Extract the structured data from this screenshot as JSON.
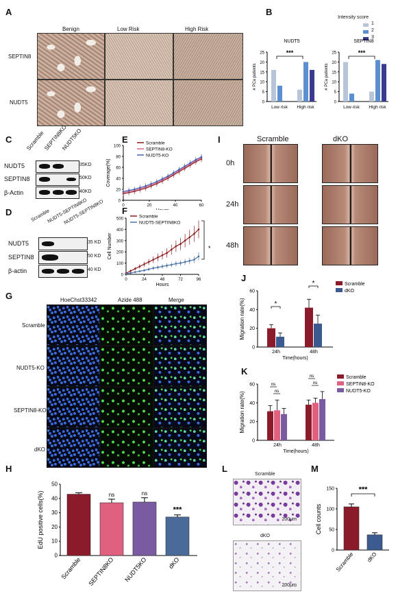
{
  "panels": {
    "A": "A",
    "B": "B",
    "C": "C",
    "D": "D",
    "E": "E",
    "F": "F",
    "G": "G",
    "H": "H",
    "I": "I",
    "J": "J",
    "K": "K",
    "L": "L",
    "M": "M"
  },
  "panelA": {
    "cols": [
      "Benign",
      "Low Risk",
      "High Risk"
    ],
    "rows": [
      "SEPTIN8",
      "NUDT5"
    ]
  },
  "panelB": {
    "legend_title": "Intensity score",
    "legend": [
      "1",
      "2",
      "3"
    ],
    "legend_colors": [
      "#b8c4d8",
      "#5b8fd0",
      "#3a3a90"
    ],
    "ylabel": "# PCa patients",
    "sig": "***",
    "charts": [
      {
        "title": "NUDT5",
        "categories": [
          "Low risk",
          "High risk"
        ],
        "series": [
          {
            "name": "1",
            "values": [
              16,
              6
            ]
          },
          {
            "name": "2",
            "values": [
              8,
              20
            ]
          },
          {
            "name": "3",
            "values": [
              0,
              16
            ]
          }
        ],
        "yticks": [
          "0",
          "5",
          "10",
          "15",
          "20",
          "25"
        ],
        "ylim": [
          0,
          25
        ]
      },
      {
        "title": "SEPTIN8",
        "categories": [
          "Low risk",
          "High risk"
        ],
        "series": [
          {
            "name": "1",
            "values": [
              20,
              5
            ]
          },
          {
            "name": "2",
            "values": [
              4,
              21
            ]
          },
          {
            "name": "3",
            "values": [
              0,
              19
            ]
          }
        ],
        "yticks": [
          "0",
          "5",
          "10",
          "15",
          "20",
          "25"
        ],
        "ylim": [
          0,
          25
        ]
      }
    ]
  },
  "panelC": {
    "lanes": [
      "Scramble",
      "SEPTIN8KO",
      "NUDT5KO"
    ],
    "rows": [
      "NUDT5",
      "SEPTIN8",
      "β-Actin"
    ],
    "markers": [
      "35KD",
      "50KD",
      "40KD"
    ]
  },
  "panelD": {
    "lanes": [
      "Scramble",
      "NUDT5-SEPTIN8KO",
      "NUDT5-SEPTIN8KO"
    ],
    "rows": [
      "NUDT5",
      "SEPTIN8",
      "β-actin"
    ],
    "markers": [
      "35 KD",
      "50 KD",
      "40 KD"
    ]
  },
  "chart_data": [
    {
      "type": "line",
      "name_key": "E",
      "ylabel": "Coverage(%)",
      "xlabel": "Hours",
      "x": [
        0,
        20,
        40,
        60
      ],
      "yticks": [
        "0",
        "20",
        "40",
        "60",
        "80",
        "100"
      ],
      "ylim": [
        0,
        100
      ],
      "xlim": [
        0,
        60
      ],
      "series": [
        {
          "name": "Scramble",
          "color": "#8b1a1a"
        },
        {
          "name": "SEPTIN8-KO",
          "color": "#e06080"
        },
        {
          "name": "NUDT5-KO",
          "color": "#4060b0"
        }
      ],
      "curve_y": [
        12,
        14,
        16,
        19,
        22,
        26,
        30,
        35,
        40,
        46,
        52,
        58,
        64,
        70,
        75
      ]
    },
    {
      "type": "line",
      "name_key": "F",
      "ylabel": "Cell Number",
      "xlabel": "Hours",
      "xticks": [
        "0",
        "24",
        "48",
        "72",
        "96"
      ],
      "xlim": [
        0,
        96
      ],
      "yticks": [
        "0",
        "100",
        "200",
        "300",
        "400",
        "500"
      ],
      "ylim": [
        0,
        500
      ],
      "series": [
        {
          "name": "Scramble",
          "color": "#8b1a1a",
          "x": [
            0,
            6,
            12,
            18,
            24,
            30,
            36,
            42,
            48,
            54,
            60,
            66,
            72,
            78,
            84,
            90,
            96
          ],
          "y": [
            10,
            30,
            50,
            70,
            90,
            110,
            130,
            150,
            170,
            190,
            220,
            250,
            270,
            300,
            330,
            360,
            400
          ]
        },
        {
          "name": "NUDT5-SEPTIN8KO",
          "color": "#4a70a8",
          "x": [
            0,
            6,
            12,
            18,
            24,
            30,
            36,
            42,
            48,
            54,
            60,
            66,
            72,
            78,
            84,
            90,
            96
          ],
          "y": [
            5,
            12,
            20,
            28,
            35,
            45,
            55,
            62,
            70,
            78,
            85,
            95,
            100,
            110,
            120,
            130,
            160
          ]
        }
      ],
      "sig": "*"
    },
    {
      "type": "bar",
      "name_key": "H",
      "ylabel": "EdU positive cells(%)",
      "categories": [
        "Scramble",
        "SEPTIN8KO",
        "NUDT5KO",
        "dKO"
      ],
      "values": [
        43,
        37,
        37.5,
        27
      ],
      "errors": [
        1,
        2.5,
        3,
        1.5
      ],
      "colors": [
        "#8b1a2a",
        "#e06080",
        "#7a5aa0",
        "#4a6a9a"
      ],
      "sig": [
        "",
        "ns",
        "ns",
        "***"
      ],
      "yticks": [
        "0",
        "10",
        "20",
        "30",
        "40",
        "50"
      ],
      "ylim": [
        0,
        50
      ]
    },
    {
      "type": "bar",
      "name_key": "J",
      "ylabel": "Migration rate(%)",
      "xlabel": "Time(hours)",
      "categories": [
        "24h",
        "48h"
      ],
      "series": [
        {
          "name": "Scramble",
          "color": "#8b1a2a",
          "values": [
            20,
            42
          ],
          "errors": [
            4,
            9
          ]
        },
        {
          "name": "dKO",
          "color": "#3a5a90",
          "values": [
            11,
            25
          ],
          "errors": [
            4,
            9
          ]
        }
      ],
      "yticks": [
        "0",
        "20",
        "40",
        "60"
      ],
      "ylim": [
        0,
        60
      ],
      "sig": [
        "*",
        "*"
      ]
    },
    {
      "type": "bar",
      "name_key": "K",
      "ylabel": "Migration rate(%)",
      "xlabel": "Time(hours)",
      "categories": [
        "24h",
        "48h"
      ],
      "series": [
        {
          "name": "Scramble",
          "color": "#8b1a2a",
          "values": [
            31,
            38
          ],
          "errors": [
            6,
            5
          ]
        },
        {
          "name": "SEPTIN8-KO",
          "color": "#e06080",
          "values": [
            32,
            40
          ],
          "errors": [
            11,
            5
          ]
        },
        {
          "name": "NUDT5-KO",
          "color": "#7a5aa0",
          "values": [
            28,
            44
          ],
          "errors": [
            6,
            8
          ]
        }
      ],
      "yticks": [
        "0",
        "20",
        "40",
        "60"
      ],
      "ylim": [
        0,
        60
      ],
      "sig": [
        "ns",
        "ns",
        "ns",
        "ns"
      ]
    },
    {
      "type": "bar",
      "name_key": "M",
      "ylabel": "Cell counts",
      "categories": [
        "Scramble",
        "dKO"
      ],
      "values": [
        105,
        37
      ],
      "errors": [
        7,
        5
      ],
      "colors": [
        "#8b1a2a",
        "#3a5a90"
      ],
      "yticks": [
        "0",
        "50",
        "100",
        "150"
      ],
      "ylim": [
        0,
        150
      ],
      "sig": "***"
    }
  ],
  "panelG": {
    "cols": [
      "HoeChst33342",
      "Azide 488",
      "Merge"
    ],
    "rows": [
      "Scramble",
      "NUDT5-KO",
      "SEPTIN8-KO",
      "dKO"
    ]
  },
  "panelI": {
    "cols": [
      "Scramble",
      "dKO"
    ],
    "rows": [
      "0h",
      "24h",
      "48h"
    ]
  },
  "panelL": {
    "labels": [
      "Scramble",
      "dKO"
    ],
    "scale": "200μm"
  }
}
